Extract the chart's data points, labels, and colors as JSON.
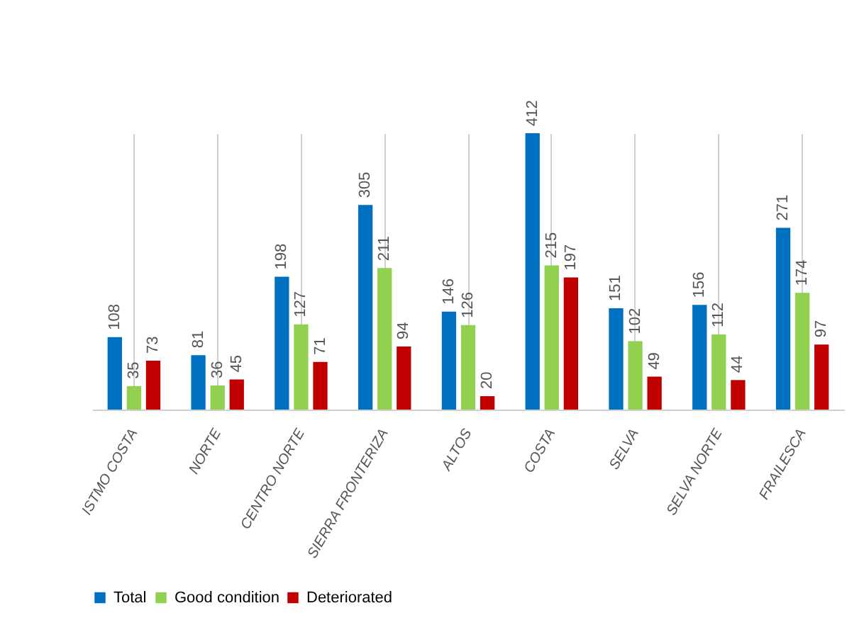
{
  "chart_data": {
    "type": "bar",
    "categories": [
      "ISTMO COSTA",
      "NORTE",
      "CENTRO NORTE",
      "SIERRA FRONTERIZA",
      "ALTOS",
      "COSTA",
      "SELVA",
      "SELVA NORTE",
      "FRAILESCA"
    ],
    "series": [
      {
        "name": "Total",
        "color": "#0070c0",
        "values": [
          108,
          81,
          198,
          305,
          146,
          412,
          151,
          156,
          271
        ]
      },
      {
        "name": "Good condition",
        "color": "#92d050",
        "values": [
          35,
          36,
          127,
          211,
          126,
          215,
          102,
          112,
          174
        ]
      },
      {
        "name": "Deteriorated",
        "color": "#c00000",
        "values": [
          73,
          45,
          71,
          94,
          20,
          197,
          49,
          44,
          97
        ]
      }
    ],
    "data_labels": true,
    "grid": "x",
    "legend": "bottom",
    "tick_labels": "x"
  }
}
